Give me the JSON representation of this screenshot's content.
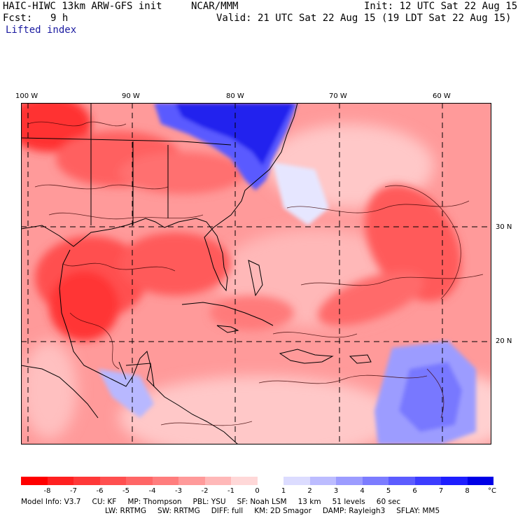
{
  "header": {
    "model": "HAIC-HIWC 13km ARW-GFS init",
    "org": "NCAR/MMM",
    "init": "Init: 12 UTC Sat 22 Aug 15",
    "fcst_label": "Fcst:",
    "fcst_value": "9 h",
    "valid": "Valid: 21 UTC Sat 22 Aug 15 (19 LDT Sat 22 Aug 15)",
    "variable": "Lifted index"
  },
  "map": {
    "lon_labels": [
      "100 W",
      "90 W",
      "80 W",
      "70 W",
      "60 W"
    ],
    "lat_labels": [
      "30 N",
      "20 N"
    ]
  },
  "colorbar": {
    "labels": [
      "-8",
      "-7",
      "-6",
      "-5",
      "-4",
      "-3",
      "-2",
      "-1",
      "0",
      "1",
      "2",
      "3",
      "4",
      "5",
      "6",
      "7",
      "8"
    ],
    "unit": "°C",
    "colors": [
      "#ff0000",
      "#ff2020",
      "#ff3838",
      "#ff4f4f",
      "#ff6666",
      "#ff7d7d",
      "#ff9a9a",
      "#ffb8b8",
      "#ffd8d8",
      "#ffffff",
      "#dcdcff",
      "#bcbcff",
      "#9c9cff",
      "#7c7cff",
      "#5c5cff",
      "#3c3cff",
      "#1e1eff",
      "#0000e6"
    ]
  },
  "model_info": {
    "line1": [
      "Model Info: V3.7",
      "CU: KF",
      "MP: Thompson",
      "PBL: YSU",
      "SF: Noah LSM",
      "13 km",
      "51 levels",
      "60 sec"
    ],
    "line2": [
      "LW: RRTMG",
      "SW: RRTMG",
      "DIFF: full",
      "KM: 2D Smagor",
      "DAMP: Rayleigh3",
      "SFLAY: MM5"
    ]
  }
}
